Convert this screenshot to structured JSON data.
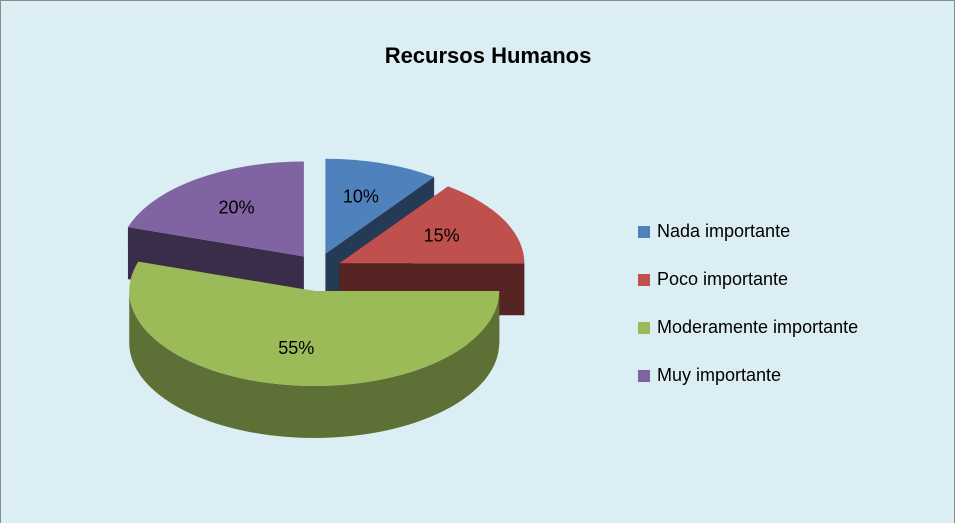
{
  "chart_data": {
    "type": "pie3d",
    "title": "Recursos Humanos",
    "categories": [
      "Nada importante",
      "Poco importante",
      "Moderamente importante",
      "Muy importante"
    ],
    "values": [
      10,
      15,
      55,
      20
    ],
    "value_labels": [
      "10%",
      "15%",
      "55%",
      "20%"
    ],
    "colors": [
      "#4f81bd",
      "#c0504d",
      "#9bbb59",
      "#8064a2"
    ],
    "legend": "right"
  }
}
